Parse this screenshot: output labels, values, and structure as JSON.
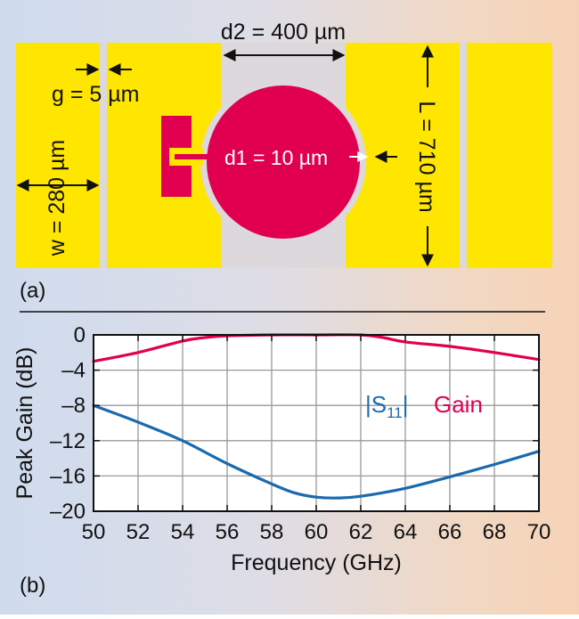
{
  "panel_a": {
    "label": "(a)",
    "d2_label": "d2 = 400 µm",
    "g_label": "g = 5 µm",
    "w_label": "w = 280 µm",
    "d1_label": "d1 = 10 µm",
    "L_label": "L = 710 µm",
    "colors": {
      "metal": "#ffe600",
      "antenna": "#e0004f",
      "substrate": "#dcd8dc"
    }
  },
  "panel_b": {
    "label": "(b)"
  },
  "chart_data": {
    "type": "line",
    "title": "",
    "xlabel": "Frequency (GHz)",
    "ylabel": "Peak Gain (dB)",
    "xlim": [
      50,
      70
    ],
    "ylim": [
      -20,
      0
    ],
    "xticks": [
      50,
      52,
      54,
      56,
      58,
      60,
      62,
      64,
      66,
      68,
      70
    ],
    "yticks": [
      0,
      -4,
      -8,
      -12,
      -16,
      -20
    ],
    "ytick_labels": [
      "0",
      "–4",
      "–8",
      "–12",
      "–16",
      "–20"
    ],
    "grid": true,
    "series": [
      {
        "name": "|S11|",
        "color": "#1a6aad",
        "x": [
          50,
          52,
          54,
          56,
          58,
          59,
          60,
          61,
          62,
          64,
          66,
          68,
          70
        ],
        "y": [
          -8,
          -9.9,
          -12,
          -14.6,
          -16.9,
          -17.9,
          -18.4,
          -18.5,
          -18.3,
          -17.4,
          -16.1,
          -14.7,
          -13.2
        ]
      },
      {
        "name": "Gain",
        "color": "#e0004f",
        "x": [
          50,
          52,
          54,
          55,
          56,
          58,
          60,
          62,
          63,
          64,
          66,
          68,
          70
        ],
        "y": [
          -3,
          -2,
          -0.7,
          -0.3,
          -0.1,
          0,
          0,
          0,
          -0.3,
          -0.8,
          -1.3,
          -2,
          -2.8
        ]
      }
    ],
    "legend": [
      {
        "text": "|S",
        "sub": "11",
        "tail": "|",
        "color": "#1a6aad"
      },
      {
        "text": "Gain",
        "color": "#e0004f"
      }
    ],
    "legend_placement": "center-right"
  }
}
